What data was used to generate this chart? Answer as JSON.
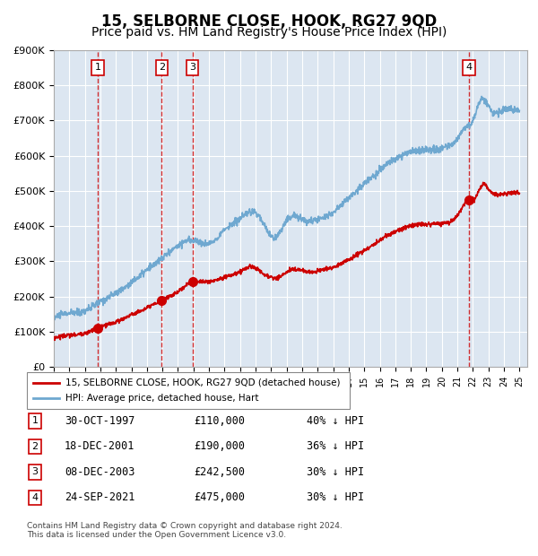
{
  "title": "15, SELBORNE CLOSE, HOOK, RG27 9QD",
  "subtitle": "Price paid vs. HM Land Registry's House Price Index (HPI)",
  "title_fontsize": 12,
  "subtitle_fontsize": 10,
  "bg_color": "#dce6f1",
  "plot_bg_color": "#dce6f1",
  "hpi_color": "#6fa8d0",
  "price_color": "#cc0000",
  "marker_color": "#cc0000",
  "dashed_color": "#cc0000",
  "ylim": [
    0,
    900000
  ],
  "xlim_start": 1995.0,
  "xlim_end": 2025.5,
  "yticks": [
    0,
    100000,
    200000,
    300000,
    400000,
    500000,
    600000,
    700000,
    800000,
    900000
  ],
  "ytick_labels": [
    "£0",
    "£100K",
    "£200K",
    "£300K",
    "£400K",
    "£500K",
    "£600K",
    "£700K",
    "£800K",
    "£900K"
  ],
  "xtick_years": [
    1995,
    1996,
    1997,
    1998,
    1999,
    2000,
    2001,
    2002,
    2003,
    2004,
    2005,
    2006,
    2007,
    2008,
    2009,
    2010,
    2011,
    2012,
    2013,
    2014,
    2015,
    2016,
    2017,
    2018,
    2019,
    2020,
    2021,
    2022,
    2023,
    2024,
    2025
  ],
  "sales": [
    {
      "label": "1",
      "date_num": 1997.83,
      "price": 110000
    },
    {
      "label": "2",
      "date_num": 2001.96,
      "price": 190000
    },
    {
      "label": "3",
      "date_num": 2003.93,
      "price": 242500
    },
    {
      "label": "4",
      "date_num": 2021.73,
      "price": 475000
    }
  ],
  "legend_line1": "15, SELBORNE CLOSE, HOOK, RG27 9QD (detached house)",
  "legend_line2": "HPI: Average price, detached house, Hart",
  "table_rows": [
    {
      "num": "1",
      "date": "30-OCT-1997",
      "price": "£110,000",
      "pct": "40% ↓ HPI"
    },
    {
      "num": "2",
      "date": "18-DEC-2001",
      "price": "£190,000",
      "pct": "36% ↓ HPI"
    },
    {
      "num": "3",
      "date": "08-DEC-2003",
      "price": "£242,500",
      "pct": "30% ↓ HPI"
    },
    {
      "num": "4",
      "date": "24-SEP-2021",
      "price": "£475,000",
      "pct": "30% ↓ HPI"
    }
  ],
  "footnote": "Contains HM Land Registry data © Crown copyright and database right 2024.\nThis data is licensed under the Open Government Licence v3.0."
}
